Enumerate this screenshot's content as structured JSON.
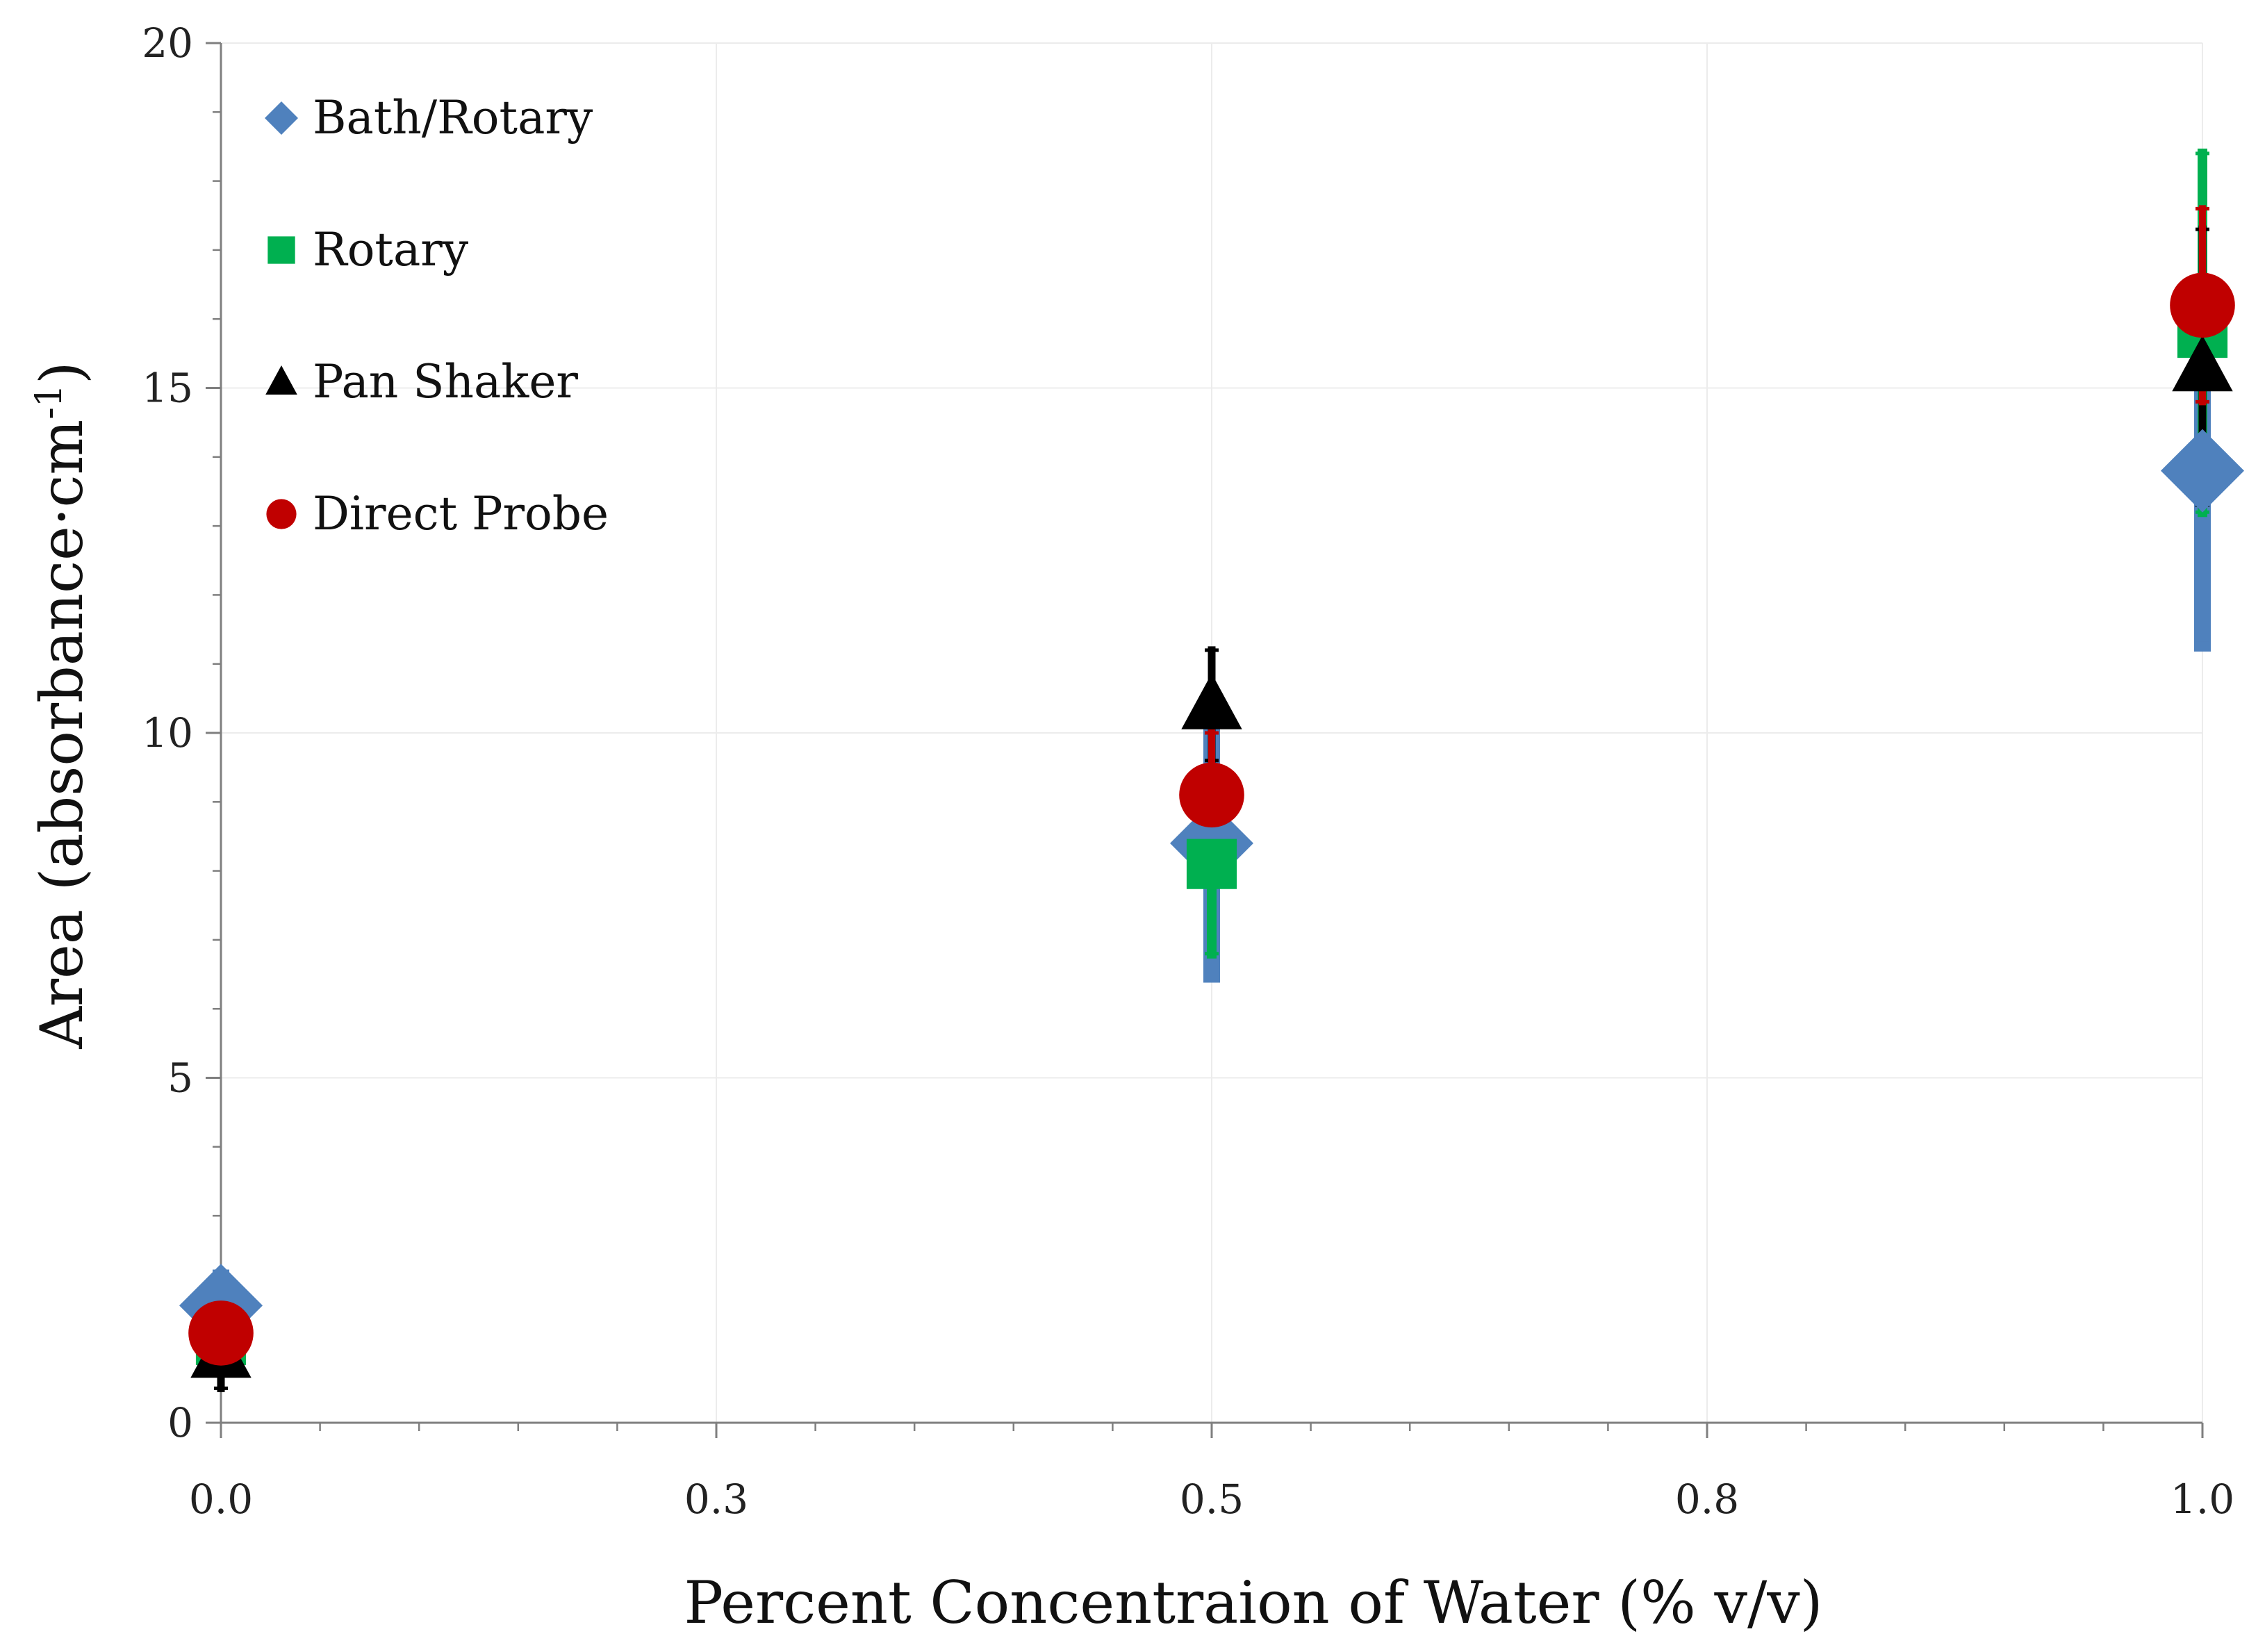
{
  "chart_data": {
    "type": "scatter",
    "title": "",
    "xlabel": "Percent Concentraion of Water (% v/v)",
    "ylabel_main": "Area (absorbance·cm",
    "ylabel_sup": "-1",
    "ylabel_close": ")",
    "xlim": [
      0.0,
      1.0
    ],
    "ylim": [
      0,
      20
    ],
    "x_ticks": [
      0.0,
      0.25,
      0.5,
      0.75,
      1.0
    ],
    "x_tick_labels": [
      "0.0",
      "0.3",
      "0.5",
      "0.8",
      "1.0"
    ],
    "x_minor_step": 0.05,
    "y_ticks": [
      0,
      5,
      10,
      15,
      20
    ],
    "y_tick_labels": [
      "0",
      "5",
      "10",
      "15",
      "20"
    ],
    "y_minor_step": 1,
    "grid": true,
    "legend_position": "top-left",
    "series": [
      {
        "name": "Bath/Rotary",
        "marker": "diamond",
        "color": "#4f81bd",
        "x": [
          0.0,
          0.5,
          1.0
        ],
        "y": [
          1.7,
          8.4,
          13.8
        ],
        "err": [
          0.4,
          1.9,
          2.5
        ]
      },
      {
        "name": "Rotary",
        "marker": "square",
        "color": "#00b050",
        "x": [
          0.0,
          0.5,
          1.0
        ],
        "y": [
          1.2,
          8.1,
          15.8
        ],
        "err": [
          0.3,
          1.3,
          2.6
        ]
      },
      {
        "name": "Pan Shaker",
        "marker": "triangle",
        "color": "#000000",
        "x": [
          0.0,
          0.5,
          1.0
        ],
        "y": [
          1.0,
          10.4,
          15.3
        ],
        "err": [
          0.5,
          0.8,
          2.0
        ]
      },
      {
        "name": "Direct Probe",
        "marker": "circle",
        "color": "#c00000",
        "x": [
          0.0,
          0.5,
          1.0
        ],
        "y": [
          1.3,
          9.1,
          16.2
        ],
        "err": [
          0.2,
          0.9,
          1.4
        ]
      }
    ]
  }
}
